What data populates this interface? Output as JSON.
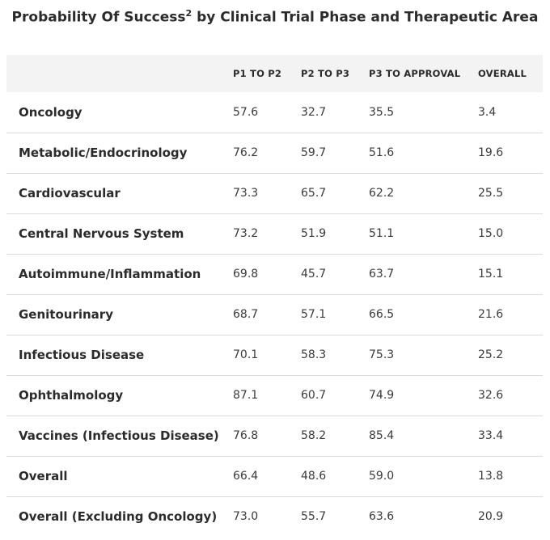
{
  "title": "Probability Of Success",
  "title_superscript": "2",
  "title_rest": " by Clinical Trial Phase and Therapeutic Area",
  "chart_data": {
    "type": "table",
    "title": "Probability Of Success2 by Clinical Trial Phase and Therapeutic Area",
    "columns": [
      "P1 TO P2",
      "P2 TO P3",
      "P3 TO APPROVAL",
      "OVERALL"
    ],
    "rows": [
      {
        "label": "Oncology",
        "values": [
          "57.6",
          "32.7",
          "35.5",
          "3.4"
        ]
      },
      {
        "label": "Metabolic/Endocrinology",
        "values": [
          "76.2",
          "59.7",
          "51.6",
          "19.6"
        ]
      },
      {
        "label": "Cardiovascular",
        "values": [
          "73.3",
          "65.7",
          "62.2",
          "25.5"
        ]
      },
      {
        "label": "Central Nervous System",
        "values": [
          "73.2",
          "51.9",
          "51.1",
          "15.0"
        ]
      },
      {
        "label": "Autoimmune/Inflammation",
        "values": [
          "69.8",
          "45.7",
          "63.7",
          "15.1"
        ]
      },
      {
        "label": "Genitourinary",
        "values": [
          "68.7",
          "57.1",
          "66.5",
          "21.6"
        ]
      },
      {
        "label": "Infectious Disease",
        "values": [
          "70.1",
          "58.3",
          "75.3",
          "25.2"
        ]
      },
      {
        "label": "Ophthalmology",
        "values": [
          "87.1",
          "60.7",
          "74.9",
          "32.6"
        ]
      },
      {
        "label": "Vaccines (Infectious Disease)",
        "values": [
          "76.8",
          "58.2",
          "85.4",
          "33.4"
        ]
      },
      {
        "label": "Overall",
        "values": [
          "66.4",
          "48.6",
          "59.0",
          "13.8"
        ]
      },
      {
        "label": "Overall (Excluding Oncology)",
        "values": [
          "73.0",
          "55.7",
          "63.6",
          "20.9"
        ]
      }
    ]
  }
}
